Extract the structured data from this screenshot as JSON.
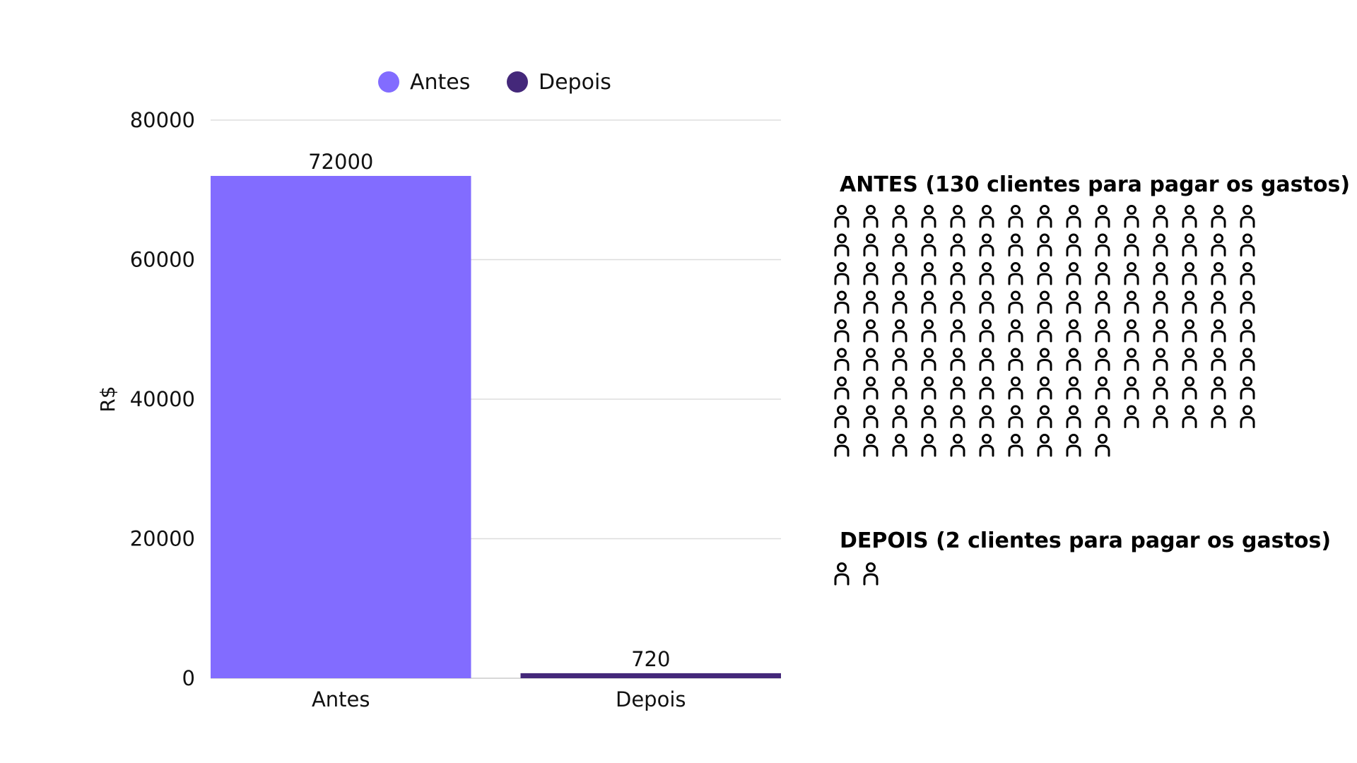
{
  "chart_data": [
    {
      "type": "bar",
      "categories": [
        "Antes",
        "Depois"
      ],
      "series": [
        {
          "name": "Antes",
          "values": [
            72000,
            null
          ],
          "color": "#826cff"
        },
        {
          "name": "Depois",
          "values": [
            null,
            720
          ],
          "color": "#44287a"
        }
      ],
      "data_labels": [
        "72000",
        "720"
      ],
      "ylabel": "R$",
      "ylim": [
        0,
        80000
      ],
      "yticks": [
        0,
        20000,
        40000,
        60000,
        80000
      ],
      "grid": true,
      "legend": "top-center"
    },
    {
      "type": "pictogram",
      "groups": [
        {
          "title": "ANTES (130 clientes para pagar os gastos)",
          "count": 130,
          "per_row": 15,
          "icon": "person-icon"
        },
        {
          "title": "DEPOIS (2 clientes para pagar os gastos)",
          "count": 2,
          "per_row": 15,
          "icon": "person-icon"
        }
      ]
    }
  ]
}
